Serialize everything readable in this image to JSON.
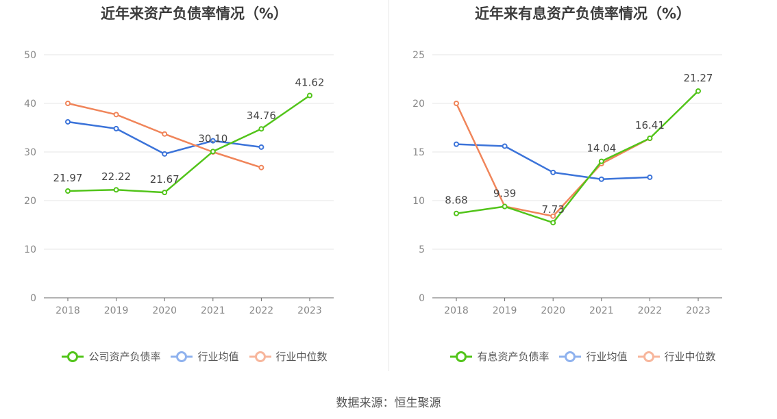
{
  "colors": {
    "company": "#52c41a",
    "industry_avg": "#3b73d9",
    "industry_median": "#f0855a"
  },
  "legend_colors": {
    "company": "#52c41a",
    "industry_avg": "#8fb2ee",
    "industry_median": "#f7b69c"
  },
  "source": "数据来源：恒生聚源",
  "chart_data": [
    {
      "type": "line",
      "title": "近年来资产负债率情况（%）",
      "x": [
        "2018",
        "2019",
        "2020",
        "2021",
        "2022",
        "2023"
      ],
      "ylim": [
        0,
        50
      ],
      "yticks": [
        0,
        10,
        20,
        30,
        40,
        50
      ],
      "grid": true,
      "legend_position": "bottom",
      "series": [
        {
          "name": "公司资产负债率",
          "key": "company",
          "values": [
            21.97,
            22.22,
            21.67,
            30.1,
            34.76,
            41.62
          ],
          "labels": [
            "21.97",
            "22.22",
            "21.67",
            "30.10",
            "34.76",
            "41.62"
          ]
        },
        {
          "name": "行业均值",
          "key": "industry_avg",
          "values": [
            36.2,
            34.8,
            29.6,
            32.3,
            31.0,
            null
          ]
        },
        {
          "name": "行业中位数",
          "key": "industry_median",
          "values": [
            40.0,
            37.7,
            33.7,
            30.0,
            26.8,
            null
          ]
        }
      ]
    },
    {
      "type": "line",
      "title": "近年来有息资产负债率情况（%）",
      "x": [
        "2018",
        "2019",
        "2020",
        "2021",
        "2022",
        "2023"
      ],
      "ylim": [
        0,
        25
      ],
      "yticks": [
        0,
        5,
        10,
        15,
        20,
        25
      ],
      "grid": true,
      "legend_position": "bottom",
      "series": [
        {
          "name": "有息资产负债率",
          "key": "company",
          "values": [
            8.68,
            9.39,
            7.73,
            14.04,
            16.41,
            21.27
          ],
          "labels": [
            "8.68",
            "9.39",
            "7.73",
            "14.04",
            "16.41",
            "21.27"
          ]
        },
        {
          "name": "行业均值",
          "key": "industry_avg",
          "values": [
            15.8,
            15.6,
            12.9,
            12.2,
            12.4,
            null
          ]
        },
        {
          "name": "行业中位数",
          "key": "industry_median",
          "values": [
            20.0,
            9.4,
            8.4,
            13.8,
            16.4,
            null
          ]
        }
      ]
    }
  ]
}
